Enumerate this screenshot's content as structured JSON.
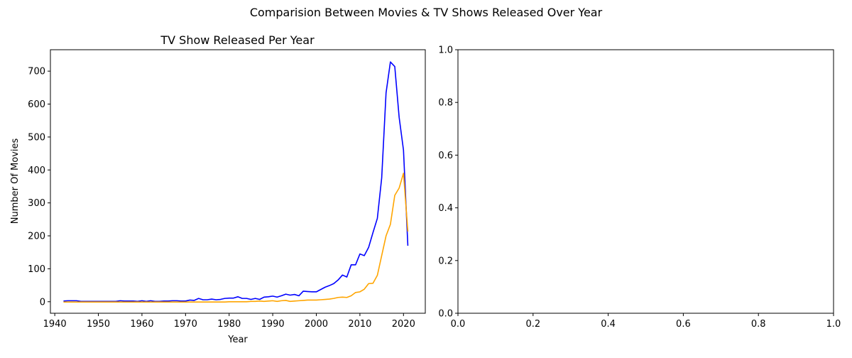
{
  "figure": {
    "suptitle": "Comparision Between Movies & TV Shows Released Over Year"
  },
  "chart_data": [
    {
      "type": "line",
      "title": "TV Show Released Per Year",
      "xlabel": "Year",
      "ylabel": "Number Of Movies",
      "xlim": [
        1939,
        2025
      ],
      "ylim": [
        -35,
        765
      ],
      "xticks": [
        1940,
        1950,
        1960,
        1970,
        1980,
        1990,
        2000,
        2010,
        2020
      ],
      "yticks": [
        0,
        100,
        200,
        300,
        400,
        500,
        600,
        700
      ],
      "grid": false,
      "series": [
        {
          "color": "#0000ff",
          "x": [
            1942,
            1943,
            1944,
            1945,
            1946,
            1947,
            1948,
            1949,
            1950,
            1951,
            1952,
            1953,
            1954,
            1955,
            1956,
            1957,
            1958,
            1959,
            1960,
            1961,
            1962,
            1963,
            1964,
            1965,
            1966,
            1967,
            1968,
            1969,
            1970,
            1971,
            1972,
            1973,
            1974,
            1975,
            1976,
            1977,
            1978,
            1979,
            1980,
            1981,
            1982,
            1983,
            1984,
            1985,
            1986,
            1987,
            1988,
            1989,
            1990,
            1991,
            1992,
            1993,
            1994,
            1995,
            1996,
            1997,
            1998,
            1999,
            2000,
            2001,
            2002,
            2003,
            2004,
            2005,
            2006,
            2007,
            2008,
            2009,
            2010,
            2011,
            2012,
            2013,
            2014,
            2015,
            2016,
            2017,
            2018,
            2019,
            2020,
            2021
          ],
          "y": [
            2,
            3,
            3,
            3,
            1,
            1,
            1,
            1,
            1,
            1,
            1,
            1,
            1,
            3,
            2,
            2,
            2,
            1,
            3,
            1,
            3,
            1,
            1,
            2,
            2,
            3,
            3,
            2,
            2,
            5,
            4,
            10,
            6,
            6,
            8,
            6,
            7,
            10,
            11,
            11,
            15,
            10,
            10,
            7,
            10,
            7,
            14,
            15,
            17,
            14,
            18,
            23,
            20,
            22,
            18,
            32,
            31,
            30,
            30,
            37,
            44,
            49,
            55,
            66,
            81,
            75,
            112,
            112,
            145,
            140,
            165,
            210,
            253,
            376,
            634,
            728,
            714,
            560,
            460,
            170
          ]
        },
        {
          "color": "#ffa500",
          "x": [
            1942,
            1943,
            1944,
            1945,
            1946,
            1947,
            1948,
            1949,
            1950,
            1951,
            1952,
            1953,
            1954,
            1955,
            1956,
            1957,
            1958,
            1959,
            1960,
            1961,
            1962,
            1963,
            1964,
            1965,
            1966,
            1967,
            1968,
            1969,
            1970,
            1971,
            1972,
            1973,
            1974,
            1975,
            1976,
            1977,
            1978,
            1979,
            1980,
            1981,
            1982,
            1983,
            1984,
            1985,
            1986,
            1987,
            1988,
            1989,
            1990,
            1991,
            1992,
            1993,
            1994,
            1995,
            1996,
            1997,
            1998,
            1999,
            2000,
            2001,
            2002,
            2003,
            2004,
            2005,
            2006,
            2007,
            2008,
            2009,
            2010,
            2011,
            2012,
            2013,
            2014,
            2015,
            2016,
            2017,
            2018,
            2019,
            2020,
            2021
          ],
          "y": [
            -1,
            -1,
            -1,
            -1,
            -1,
            -1,
            -1,
            -1,
            -1,
            -1,
            -1,
            -1,
            -1,
            -1,
            -1,
            -1,
            -1,
            -1,
            -1,
            -1,
            -1,
            -1,
            -1,
            -1,
            -1,
            -1,
            -1,
            -1,
            -1,
            -1,
            -1,
            -1,
            -1,
            -1,
            -1,
            -1,
            -1,
            -1,
            0,
            0,
            0,
            0,
            0,
            1,
            1,
            2,
            1,
            2,
            3,
            1,
            3,
            4,
            1,
            2,
            3,
            4,
            5,
            5,
            5,
            6,
            7,
            8,
            10,
            13,
            14,
            13,
            18,
            28,
            30,
            38,
            55,
            56,
            80,
            140,
            200,
            235,
            323,
            345,
            390,
            213
          ]
        }
      ]
    },
    {
      "type": "line",
      "title": "",
      "xlabel": "",
      "ylabel": "",
      "xlim": [
        0,
        1
      ],
      "ylim": [
        0,
        1
      ],
      "xticks": [
        "0.0",
        "0.2",
        "0.4",
        "0.6",
        "0.8",
        "1.0"
      ],
      "yticks": [
        "0.0",
        "0.2",
        "0.4",
        "0.6",
        "0.8",
        "1.0"
      ],
      "grid": false,
      "series": []
    }
  ]
}
